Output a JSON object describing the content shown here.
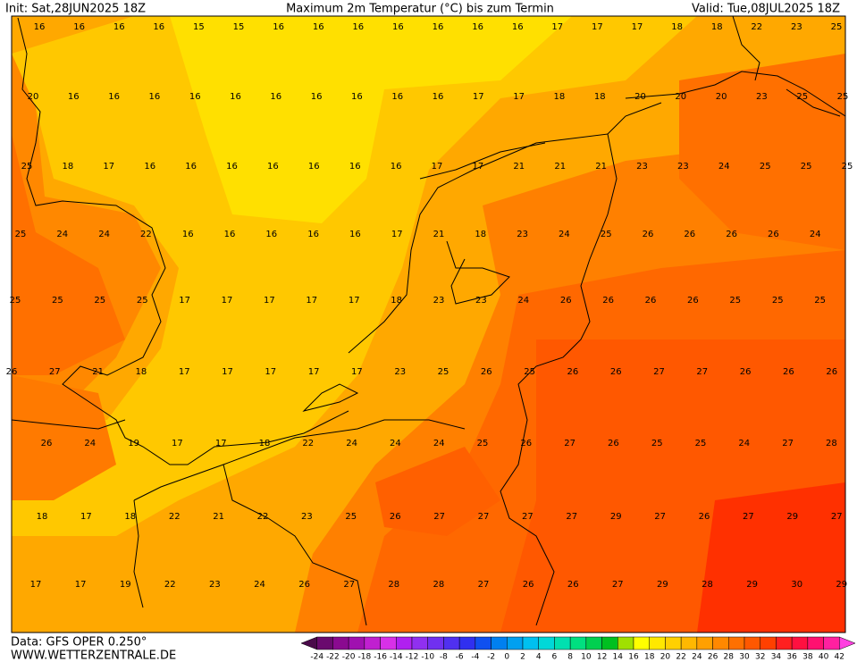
{
  "header": {
    "init": "Init: Sat,28JUN2025 18Z",
    "title": "Maximum 2m Temperatur (°C) bis zum Termin",
    "valid": "Valid: Tue,08JUL2025 18Z"
  },
  "map": {
    "rows": [
      [
        16,
        16,
        16,
        16,
        15,
        15,
        16,
        16,
        16,
        16,
        16,
        16,
        16,
        17,
        17,
        17,
        18,
        18,
        22,
        23,
        25
      ],
      [
        20,
        16,
        16,
        16,
        16,
        16,
        16,
        16,
        16,
        16,
        16,
        17,
        17,
        18,
        18,
        20,
        20,
        20,
        23,
        25,
        25
      ],
      [
        25,
        18,
        17,
        16,
        16,
        16,
        16,
        16,
        16,
        16,
        17,
        17,
        21,
        21,
        21,
        23,
        23,
        24,
        25,
        25,
        25
      ],
      [
        25,
        24,
        24,
        22,
        16,
        16,
        16,
        16,
        16,
        17,
        21,
        18,
        23,
        24,
        25,
        26,
        26,
        26,
        26,
        24
      ],
      [
        25,
        25,
        25,
        25,
        17,
        17,
        17,
        17,
        17,
        18,
        23,
        23,
        24,
        26,
        26,
        26,
        26,
        25,
        25,
        25
      ],
      [
        26,
        27,
        21,
        18,
        17,
        17,
        17,
        17,
        17,
        23,
        25,
        26,
        25,
        26,
        26,
        27,
        27,
        26,
        26,
        26
      ],
      [
        26,
        24,
        19,
        17,
        17,
        18,
        22,
        24,
        24,
        24,
        25,
        26,
        27,
        26,
        25,
        25,
        24,
        27,
        28
      ],
      [
        18,
        17,
        18,
        22,
        21,
        22,
        23,
        25,
        26,
        27,
        27,
        27,
        27,
        29,
        27,
        26,
        27,
        29,
        27
      ],
      [
        17,
        17,
        19,
        22,
        23,
        24,
        26,
        27,
        28,
        28,
        27,
        26,
        26,
        27,
        29,
        28,
        29,
        30,
        29
      ]
    ]
  },
  "colorbar": {
    "ticks": [
      -24,
      -22,
      -20,
      -18,
      -16,
      -14,
      -12,
      -10,
      -8,
      -6,
      -4,
      -2,
      0,
      2,
      4,
      6,
      8,
      10,
      12,
      14,
      16,
      18,
      20,
      22,
      24,
      26,
      28,
      30,
      32,
      34,
      36,
      38,
      40,
      42
    ],
    "colors": [
      "#4a0a4a",
      "#6a0a6e",
      "#8a0a90",
      "#a010b0",
      "#c020d0",
      "#d830e8",
      "#b020f0",
      "#9030f0",
      "#7030f0",
      "#5030f0",
      "#3030f0",
      "#1050f0",
      "#0080f0",
      "#00a0f0",
      "#00c0f0",
      "#00d8d8",
      "#00e0b0",
      "#00e080",
      "#00d050",
      "#00c020",
      "#a0e000",
      "#ffff00",
      "#ffe800",
      "#ffd000",
      "#ffb800",
      "#ffa000",
      "#ff8800",
      "#ff7000",
      "#ff5800",
      "#ff4000",
      "#ff2020",
      "#ff1040",
      "#ff1070",
      "#ff20a0",
      "#ff40e0"
    ]
  },
  "footer": {
    "source": "Data: GFS OPER 0.250°",
    "website": "WWW.WETTERZENTRALE.DE"
  }
}
